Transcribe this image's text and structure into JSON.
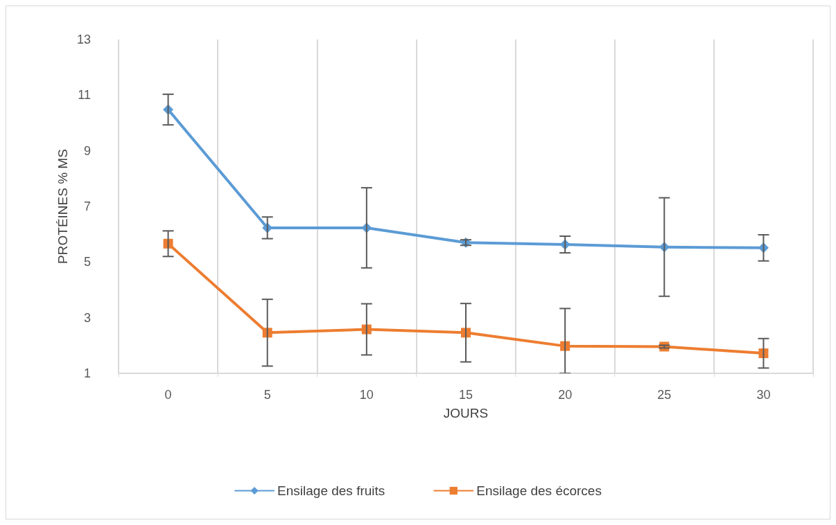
{
  "chart_data": {
    "type": "line",
    "xlabel": "JOURS",
    "ylabel": "PROTÉINES % MS",
    "categories": [
      "0",
      "5",
      "10",
      "15",
      "20",
      "25",
      "30"
    ],
    "series": [
      {
        "name": "Ensilage des fruits",
        "color": "#5b9bd5",
        "marker": "diamond",
        "values": [
          10.48,
          6.23,
          6.23,
          5.7,
          5.63,
          5.54,
          5.51
        ],
        "errors": [
          0.55,
          0.39,
          1.44,
          0.1,
          0.3,
          1.77,
          0.47
        ]
      },
      {
        "name": "Ensilage des écorces",
        "color": "#ed7d31",
        "marker": "square",
        "values": [
          5.66,
          2.46,
          2.58,
          2.46,
          1.98,
          1.96,
          1.72
        ],
        "errors": [
          0.46,
          1.2,
          0.92,
          1.05,
          [
            1,
            3.33
          ],
          0.05,
          0.53
        ]
      }
    ],
    "ylim": [
      1,
      13
    ],
    "yticks": [
      1,
      3,
      5,
      7,
      9,
      11,
      13
    ],
    "grid": "x",
    "legend": "bottom"
  }
}
